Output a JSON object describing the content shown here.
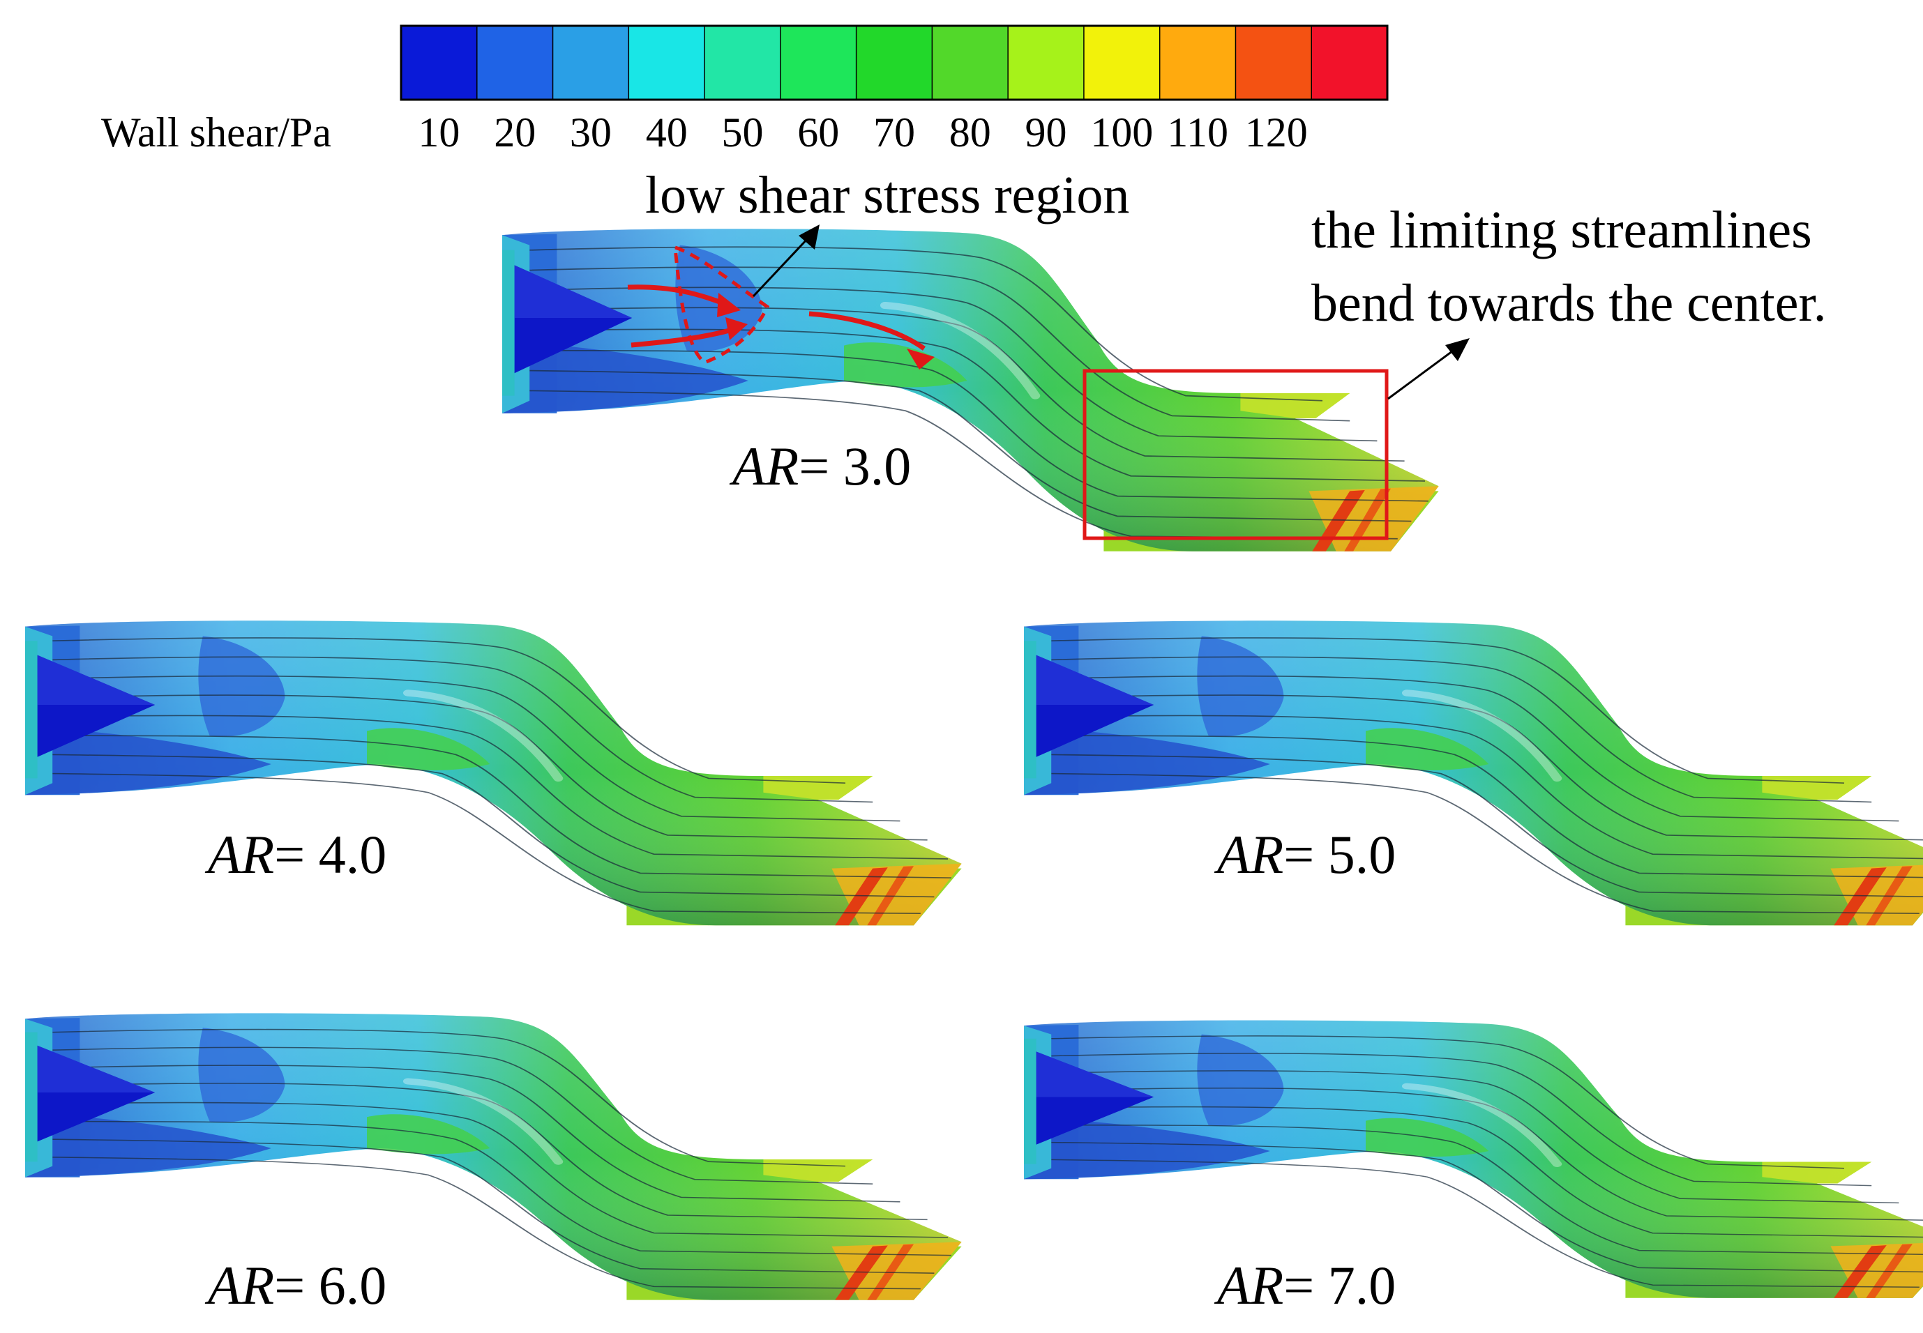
{
  "colorbar": {
    "title": "Wall shear/Pa",
    "ticks": [
      "10",
      "20",
      "30",
      "40",
      "50",
      "60",
      "70",
      "80",
      "90",
      "100",
      "110",
      "120"
    ],
    "colors": [
      "#0a1ad8",
      "#1f63e6",
      "#2a9fe6",
      "#19e6e6",
      "#22e6a6",
      "#1ee65a",
      "#22d82a",
      "#52d82a",
      "#a6f21a",
      "#f2f20a",
      "#ffaa0e",
      "#f45212",
      "#f2122a"
    ]
  },
  "annotations": {
    "low_shear": "low shear stress region",
    "streamlines_line1": "the limiting streamlines",
    "streamlines_line2": "bend towards the center."
  },
  "cases": [
    {
      "prefix": "AR",
      "value": "= 3.0"
    },
    {
      "prefix": "AR",
      "value": "= 4.0"
    },
    {
      "prefix": "AR",
      "value": "= 5.0"
    },
    {
      "prefix": "AR",
      "value": "= 6.0"
    },
    {
      "prefix": "AR",
      "value": "= 7.0"
    }
  ],
  "palette": {
    "cone": "#0d17c8",
    "duct_blue": "#2c6fd4",
    "duct_light": "#3fb6ea",
    "duct_green": "#38c84a",
    "duct_yellow": "#b8e02a",
    "outlet_red": "#e0421a",
    "highlight": "#e01818"
  }
}
